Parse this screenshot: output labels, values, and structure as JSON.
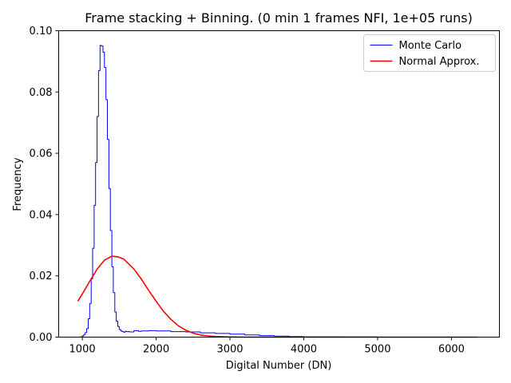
{
  "chart_data": {
    "type": "line",
    "title": "Frame stacking + Binning. (0 min 1 frames NFI, 1e+05 runs)",
    "xlabel": "Digital Number (DN)",
    "ylabel": "Frequency",
    "xlim": [
      680,
      6650
    ],
    "ylim": [
      0,
      0.1
    ],
    "xticks": [
      1000,
      2000,
      3000,
      4000,
      5000,
      6000
    ],
    "yticks": [
      0.0,
      0.02,
      0.04,
      0.06,
      0.08,
      0.1
    ],
    "xtick_labels": [
      "1000",
      "2000",
      "3000",
      "4000",
      "5000",
      "6000"
    ],
    "ytick_labels": [
      "0.00",
      "0.02",
      "0.04",
      "0.06",
      "0.08",
      "0.10"
    ],
    "grid": false,
    "legend_position": "top-right",
    "series": [
      {
        "name": "Monte Carlo",
        "style": "step",
        "color": "#0000ff",
        "x": [
          940,
          975,
          1000,
          1020,
          1040,
          1060,
          1080,
          1100,
          1120,
          1140,
          1160,
          1180,
          1200,
          1220,
          1240,
          1260,
          1280,
          1300,
          1320,
          1340,
          1360,
          1380,
          1400,
          1420,
          1440,
          1460,
          1480,
          1500,
          1520,
          1540,
          1560,
          1580,
          1600,
          1640,
          1700,
          1760,
          1800,
          1900,
          2000,
          2200,
          2400,
          2600,
          2800,
          3000,
          3200,
          3400,
          3600,
          3800,
          4000,
          4500,
          5000,
          5500,
          6000,
          6350
        ],
        "y": [
          0.0,
          0.0001,
          0.0004,
          0.0008,
          0.0015,
          0.0028,
          0.006,
          0.011,
          0.019,
          0.029,
          0.043,
          0.057,
          0.072,
          0.087,
          0.0952,
          0.095,
          0.093,
          0.088,
          0.0775,
          0.0645,
          0.0485,
          0.0348,
          0.023,
          0.0145,
          0.0082,
          0.0052,
          0.0035,
          0.0025,
          0.002,
          0.0018,
          0.0016,
          0.0019,
          0.0018,
          0.0017,
          0.0021,
          0.0019,
          0.002,
          0.0021,
          0.002,
          0.0018,
          0.0017,
          0.0014,
          0.0012,
          0.001,
          0.0007,
          0.0005,
          0.0003,
          0.0002,
          0.0001,
          5e-05,
          0.0,
          0.0,
          0.0,
          0.0
        ]
      },
      {
        "name": "Normal Approx.",
        "style": "line",
        "color": "#ff0000",
        "x": [
          940,
          1000,
          1100,
          1200,
          1300,
          1400,
          1480,
          1560,
          1700,
          1800,
          1900,
          2000,
          2100,
          2200,
          2300,
          2400,
          2500,
          2600,
          2700,
          2800,
          3000,
          3200,
          3400,
          3600,
          4000,
          4500,
          5000,
          5500,
          6000,
          6350
        ],
        "y": [
          0.0117,
          0.0141,
          0.0182,
          0.0222,
          0.0251,
          0.0264,
          0.0262,
          0.0255,
          0.0222,
          0.0189,
          0.0152,
          0.0117,
          0.0084,
          0.0058,
          0.0037,
          0.0023,
          0.0013,
          0.0007,
          0.0004,
          0.0002,
          4e-05,
          0.0,
          0.0,
          0.0,
          0.0,
          0.0,
          0.0,
          0.0,
          0.0,
          0.0
        ]
      }
    ]
  }
}
